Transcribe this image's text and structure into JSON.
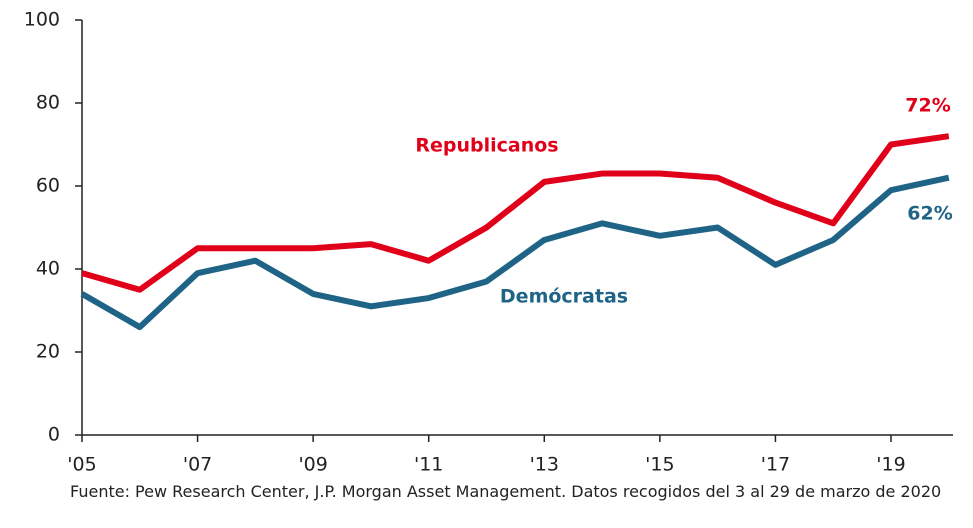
{
  "chart_data": {
    "type": "line",
    "categories": [
      "'05",
      null,
      "'07",
      null,
      "'09",
      null,
      "'11",
      null,
      "'13",
      null,
      "'15",
      null,
      "'17",
      null,
      "'19",
      null
    ],
    "series": [
      {
        "name": "Republicanos",
        "color": "#e1001a",
        "values": [
          39,
          35,
          45,
          45,
          45,
          46,
          42,
          50,
          61,
          63,
          63,
          62,
          56,
          51,
          70,
          72
        ],
        "value_labels": [
          null,
          null,
          null,
          null,
          null,
          null,
          null,
          null,
          null,
          null,
          null,
          null,
          null,
          null,
          null,
          "72%"
        ]
      },
      {
        "name": "Demócratas",
        "color": "#1f6487",
        "values": [
          34,
          26,
          39,
          42,
          34,
          31,
          33,
          37,
          47,
          51,
          48,
          50,
          41,
          47,
          59,
          62
        ],
        "value_labels": [
          null,
          null,
          null,
          null,
          null,
          null,
          null,
          null,
          null,
          null,
          null,
          null,
          null,
          null,
          null,
          "62%"
        ]
      }
    ],
    "ylim": [
      0,
      100
    ],
    "yticks": [
      0,
      20,
      40,
      60,
      80,
      100
    ],
    "grid": false,
    "source": "Fuente: Pew Research Center, J.P. Morgan Asset Management. Datos recogidos del 3 al 29 de marzo de 2020"
  }
}
